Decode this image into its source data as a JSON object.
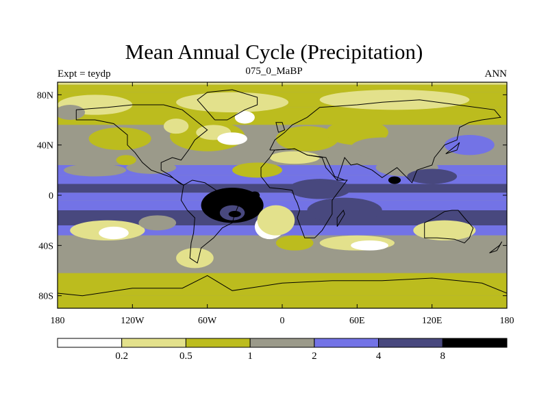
{
  "chart_data": {
    "type": "heatmap",
    "title": "Mean Annual Cycle (Precipitation)",
    "subtitle_left": "Expt = teydp",
    "subtitle_center": "075_0_MaBP",
    "subtitle_right": "ANN",
    "xlim": [
      -180,
      180
    ],
    "ylim": [
      -90,
      90
    ],
    "x_ticks": [
      {
        "value": -180,
        "label": "180"
      },
      {
        "value": -120,
        "label": "120W"
      },
      {
        "value": -60,
        "label": "60W"
      },
      {
        "value": 0,
        "label": "0"
      },
      {
        "value": 60,
        "label": "60E"
      },
      {
        "value": 120,
        "label": "120E"
      },
      {
        "value": 180,
        "label": "180"
      }
    ],
    "y_ticks": [
      {
        "value": 80,
        "label": "80N"
      },
      {
        "value": 40,
        "label": "40N"
      },
      {
        "value": 0,
        "label": "0"
      },
      {
        "value": -40,
        "label": "40S"
      },
      {
        "value": -80,
        "label": "80S"
      }
    ],
    "colorbar": {
      "levels": [
        "0.2",
        "0.5",
        "1",
        "2",
        "4",
        "8"
      ],
      "colors": [
        "#ffffff",
        "#e3e18c",
        "#bcbc1e",
        "#9b9a8a",
        "#7373e6",
        "#48487e",
        "#000000"
      ]
    }
  }
}
